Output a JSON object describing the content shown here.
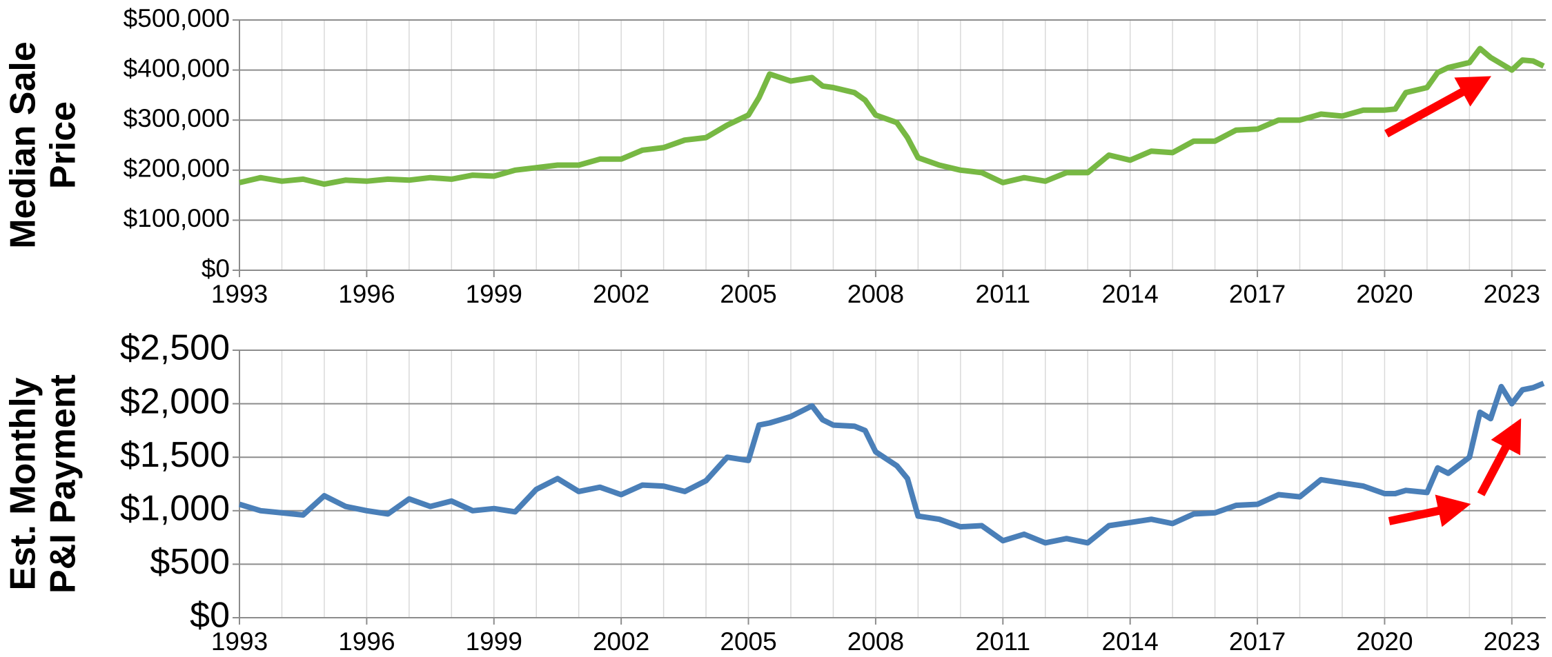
{
  "chart_data": [
    {
      "type": "line",
      "ylabel_lines": [
        "Median Sale",
        "Price"
      ],
      "color": "#77b843",
      "x": [
        1993,
        1993.5,
        1994,
        1994.5,
        1995,
        1995.5,
        1996,
        1996.5,
        1997,
        1997.5,
        1998,
        1998.5,
        1999,
        1999.5,
        2000,
        2000.5,
        2001,
        2001.5,
        2002,
        2002.5,
        2003,
        2003.5,
        2004,
        2004.5,
        2005,
        2005.25,
        2005.5,
        2005.75,
        2006,
        2006.5,
        2006.75,
        2007,
        2007.5,
        2007.75,
        2008,
        2008.5,
        2008.75,
        2009,
        2009.5,
        2010,
        2010.5,
        2011,
        2011.5,
        2012,
        2012.5,
        2013,
        2013.5,
        2014,
        2014.5,
        2015,
        2015.5,
        2016,
        2016.5,
        2017,
        2017.5,
        2018,
        2018.5,
        2019,
        2019.5,
        2020,
        2020.25,
        2020.5,
        2021,
        2021.25,
        2021.5,
        2022,
        2022.25,
        2022.5,
        2023,
        2023.25,
        2023.5,
        2023.75
      ],
      "values": [
        175000,
        185000,
        178000,
        182000,
        172000,
        180000,
        178000,
        182000,
        180000,
        185000,
        182000,
        190000,
        188000,
        200000,
        205000,
        210000,
        210000,
        222000,
        222000,
        240000,
        245000,
        260000,
        265000,
        290000,
        310000,
        345000,
        392000,
        385000,
        378000,
        385000,
        368000,
        365000,
        355000,
        340000,
        310000,
        295000,
        265000,
        225000,
        210000,
        200000,
        195000,
        175000,
        185000,
        178000,
        195000,
        195000,
        230000,
        220000,
        238000,
        235000,
        258000,
        258000,
        280000,
        282000,
        300000,
        300000,
        312000,
        308000,
        320000,
        320000,
        322000,
        355000,
        365000,
        395000,
        405000,
        415000,
        443000,
        425000,
        400000,
        420000,
        418000,
        408000
      ],
      "xlim": [
        1993,
        2023.8
      ],
      "xticks": [
        1993,
        1996,
        1999,
        2002,
        2005,
        2008,
        2011,
        2014,
        2017,
        2020,
        2023
      ],
      "xminorticks": [
        1993,
        1994,
        1995,
        1996,
        1997,
        1998,
        1999,
        2000,
        2001,
        2002,
        2003,
        2004,
        2005,
        2006,
        2007,
        2008,
        2009,
        2010,
        2011,
        2012,
        2013,
        2014,
        2015,
        2016,
        2017,
        2018,
        2019,
        2020,
        2021,
        2022,
        2023
      ],
      "ylim": [
        0,
        500000
      ],
      "yticks": [
        {
          "value": 0,
          "label": "$0"
        },
        {
          "value": 100000,
          "label": "$100,000"
        },
        {
          "value": 200000,
          "label": "$200,000"
        },
        {
          "value": 300000,
          "label": "$300,000"
        },
        {
          "value": 400000,
          "label": "$400,000"
        },
        {
          "value": 500000,
          "label": "$500,000"
        }
      ],
      "grid": true
    },
    {
      "type": "line",
      "ylabel_lines": [
        "Est. Monthly",
        "P&I Payment"
      ],
      "color": "#4a7fb8",
      "x": [
        1993,
        1993.5,
        1994,
        1994.5,
        1995,
        1995.5,
        1996,
        1996.5,
        1997,
        1997.5,
        1998,
        1998.5,
        1999,
        1999.5,
        2000,
        2000.5,
        2001,
        2001.5,
        2002,
        2002.5,
        2003,
        2003.5,
        2004,
        2004.5,
        2005,
        2005.25,
        2005.5,
        2005.75,
        2006,
        2006.5,
        2006.75,
        2007,
        2007.5,
        2007.75,
        2008,
        2008.5,
        2008.75,
        2009,
        2009.5,
        2010,
        2010.5,
        2011,
        2011.5,
        2012,
        2012.5,
        2013,
        2013.5,
        2014,
        2014.5,
        2015,
        2015.5,
        2016,
        2016.5,
        2017,
        2017.5,
        2018,
        2018.5,
        2019,
        2019.5,
        2020,
        2020.25,
        2020.5,
        2021,
        2021.25,
        2021.5,
        2022,
        2022.25,
        2022.5,
        2022.75,
        2023,
        2023.25,
        2023.5,
        2023.75
      ],
      "values": [
        1060,
        1000,
        980,
        960,
        1140,
        1040,
        1000,
        970,
        1110,
        1040,
        1090,
        1000,
        1020,
        990,
        1200,
        1300,
        1180,
        1220,
        1150,
        1240,
        1230,
        1180,
        1280,
        1500,
        1470,
        1800,
        1820,
        1850,
        1880,
        1980,
        1850,
        1800,
        1790,
        1750,
        1550,
        1420,
        1300,
        950,
        920,
        850,
        860,
        720,
        780,
        700,
        740,
        700,
        860,
        890,
        920,
        880,
        970,
        980,
        1050,
        1060,
        1150,
        1130,
        1290,
        1260,
        1230,
        1160,
        1160,
        1190,
        1170,
        1400,
        1350,
        1500,
        1920,
        1860,
        2160,
        2000,
        2130,
        2150,
        2190
      ],
      "xlim": [
        1993,
        2023.8
      ],
      "xticks": [
        1993,
        1996,
        1999,
        2002,
        2005,
        2008,
        2011,
        2014,
        2017,
        2020,
        2023
      ],
      "xminorticks": [
        1993,
        1994,
        1995,
        1996,
        1997,
        1998,
        1999,
        2000,
        2001,
        2002,
        2003,
        2004,
        2005,
        2006,
        2007,
        2008,
        2009,
        2010,
        2011,
        2012,
        2013,
        2014,
        2015,
        2016,
        2017,
        2018,
        2019,
        2020,
        2021,
        2022,
        2023
      ],
      "ylim": [
        0,
        2500
      ],
      "yticks": [
        {
          "value": 0,
          "label": "$0"
        },
        {
          "value": 500,
          "label": "$500"
        },
        {
          "value": 1000,
          "label": "$1,000"
        },
        {
          "value": 1500,
          "label": "$1,500"
        },
        {
          "value": 2000,
          "label": "$2,000"
        },
        {
          "value": 2500,
          "label": "$2,500"
        }
      ],
      "grid": true
    }
  ]
}
